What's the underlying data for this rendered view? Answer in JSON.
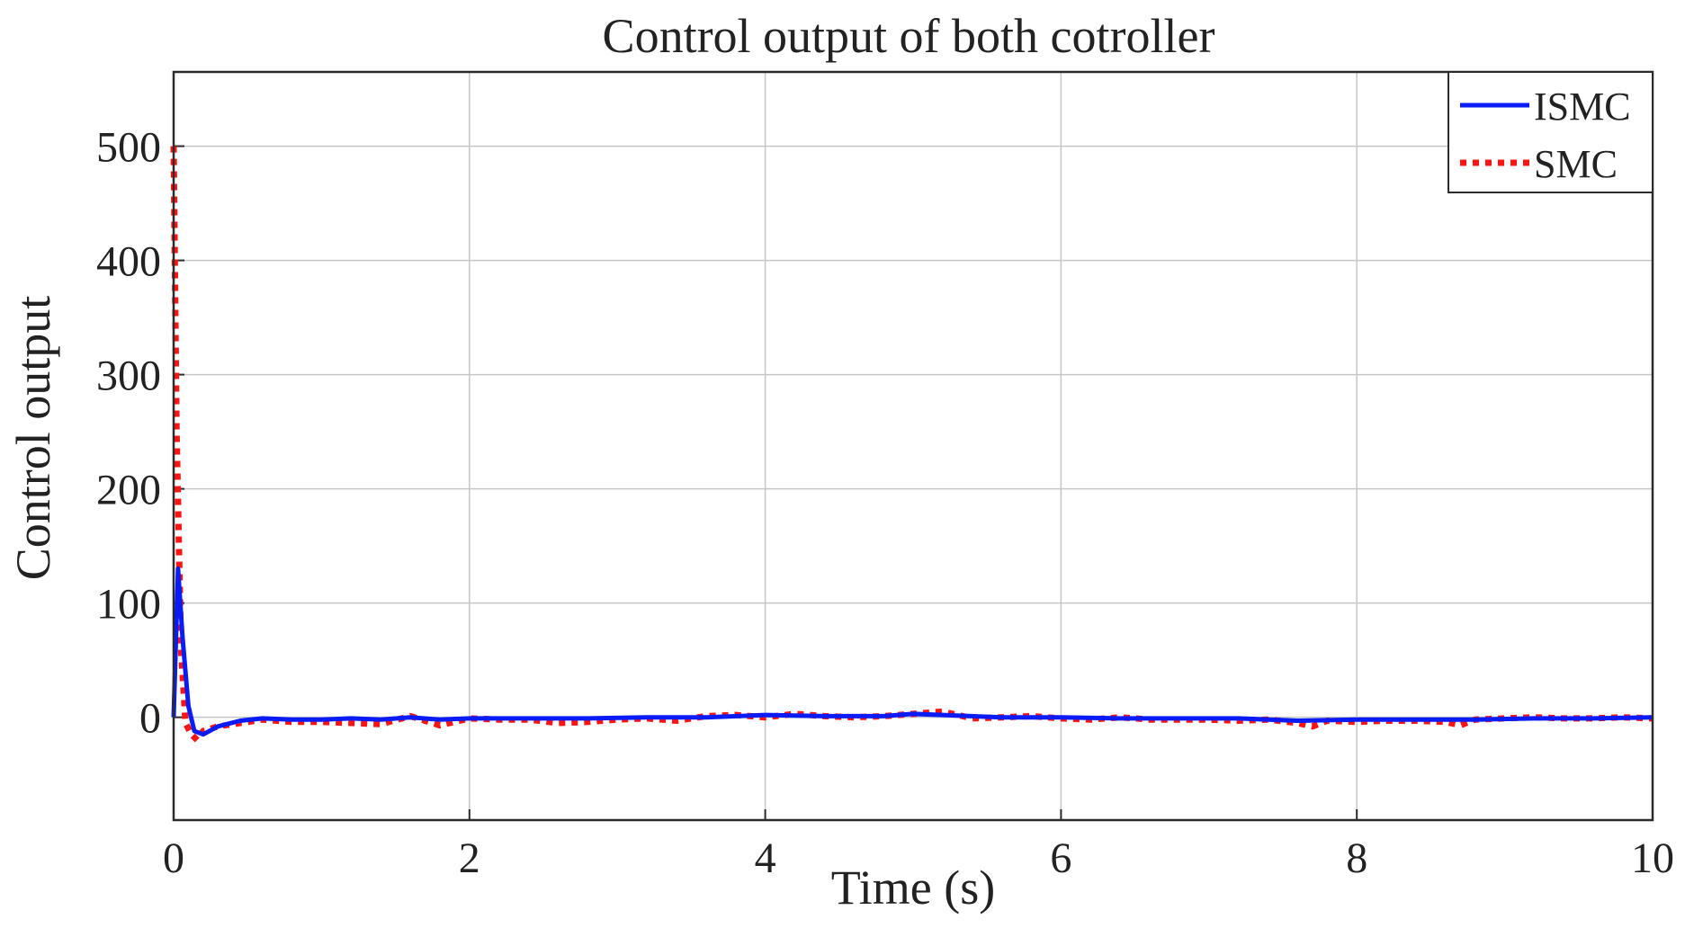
{
  "chart_data": {
    "type": "line",
    "title": "Control output of both cotroller",
    "xlabel": "Time (s)",
    "ylabel": "Control output",
    "xlim": [
      0,
      10
    ],
    "ylim": [
      -90,
      565
    ],
    "xticks": [
      0,
      2,
      4,
      6,
      8,
      10
    ],
    "yticks": [
      0,
      100,
      200,
      300,
      400,
      500
    ],
    "grid": true,
    "legend_position": "top-right",
    "series": [
      {
        "name": "ISMC",
        "color": "#0a1cf5",
        "line_style": "solid",
        "x": [
          0,
          0.03,
          0.06,
          0.1,
          0.14,
          0.2,
          0.3,
          0.45,
          0.6,
          0.8,
          1.0,
          1.2,
          1.4,
          1.6,
          1.8,
          2.0,
          2.4,
          2.8,
          3.2,
          3.6,
          4.0,
          4.4,
          4.8,
          5.0,
          5.2,
          5.6,
          6.0,
          6.4,
          6.8,
          7.2,
          7.6,
          8.0,
          8.4,
          8.8,
          9.2,
          9.6,
          10.0
        ],
        "y": [
          0,
          130,
          70,
          10,
          -12,
          -15,
          -8,
          -3,
          -1,
          -2,
          -2,
          -1,
          -2,
          0,
          -2,
          -1,
          -1,
          -1,
          0,
          0,
          2,
          1,
          1,
          3,
          2,
          0,
          0,
          -1,
          -1,
          -1,
          -3,
          -2,
          -2,
          -2,
          -1,
          -1,
          0
        ]
      },
      {
        "name": "SMC",
        "color": "#ff1414",
        "line_style": "dotted",
        "x": [
          0,
          0.02,
          0.05,
          0.08,
          0.12,
          0.16,
          0.2,
          0.3,
          0.4,
          0.5,
          0.6,
          0.7,
          0.8,
          1.0,
          1.2,
          1.4,
          1.6,
          1.8,
          2.0,
          2.2,
          2.4,
          2.6,
          2.8,
          3.0,
          3.2,
          3.4,
          3.6,
          3.8,
          4.0,
          4.2,
          4.4,
          4.6,
          4.8,
          5.0,
          5.2,
          5.4,
          5.6,
          5.8,
          6.0,
          6.2,
          6.4,
          6.6,
          6.8,
          7.0,
          7.2,
          7.4,
          7.6,
          7.7,
          7.8,
          8.0,
          8.2,
          8.4,
          8.6,
          8.7,
          8.8,
          9.0,
          9.2,
          9.4,
          9.6,
          9.8,
          10.0
        ],
        "y": [
          500,
          250,
          60,
          -5,
          -15,
          -20,
          -12,
          -8,
          -6,
          -4,
          -2,
          -3,
          -4,
          -4,
          -5,
          -6,
          1,
          -7,
          -1,
          -2,
          -2,
          -5,
          -4,
          -2,
          -1,
          -3,
          1,
          2,
          0,
          3,
          1,
          0,
          1,
          3,
          5,
          -1,
          0,
          1,
          -1,
          -2,
          0,
          -2,
          -2,
          -2,
          -3,
          -2,
          -5,
          -8,
          -3,
          -4,
          -3,
          -3,
          -4,
          -7,
          -2,
          -1,
          0,
          -1,
          -1,
          0,
          -1
        ]
      }
    ]
  }
}
